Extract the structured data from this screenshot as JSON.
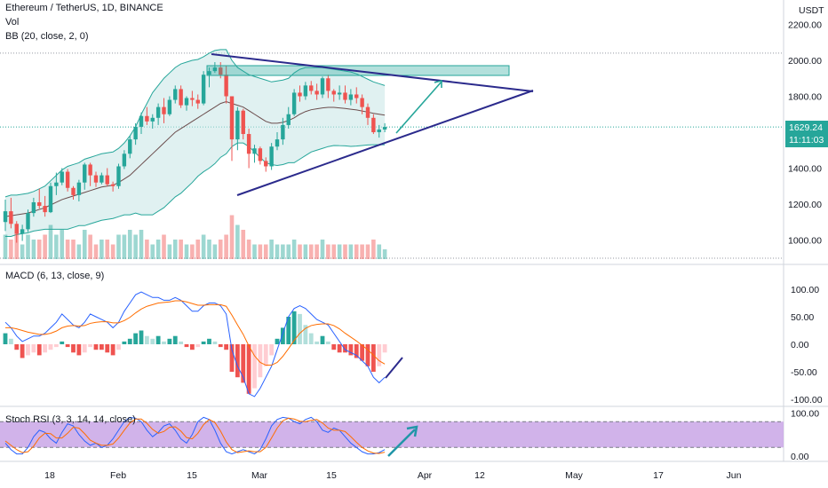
{
  "header": {
    "symbol_line": "Ethereum / TetherUS, 1D, BINANCE",
    "vol_label": "Vol",
    "bb_label": "BB (20, close, 2, 0)",
    "macd_label": "MACD (6, 13, close, 9)",
    "rsi_label": "Stoch RSI (3, 3, 14, 14, close)"
  },
  "price_axis": {
    "currency": "USDT",
    "ticks": [
      "2200.00",
      "2000.00",
      "1800.00",
      "1600.00",
      "1400.00",
      "1200.00",
      "1000.00"
    ]
  },
  "macd_axis": {
    "ticks": [
      "100.00",
      "50.00",
      "0.00",
      "-50.00",
      "-100.00"
    ]
  },
  "rsi_axis": {
    "ticks": [
      "100.00",
      "0.00"
    ]
  },
  "last_price": {
    "price": "1629.24",
    "countdown": "11:11:03"
  },
  "time_axis": {
    "labels": [
      "18",
      "Feb",
      "15",
      "Mar",
      "15",
      "Apr",
      "12",
      "May",
      "17",
      "Jun"
    ]
  },
  "colors": {
    "up": "#26a69a",
    "down": "#ef5350",
    "trendline": "#2b2a8c",
    "bb_fill": "#c6e6e6",
    "bb_band": "#26a69a",
    "bb_basis": "#6b4d4d",
    "macd_line": "#2962ff",
    "signal_line": "#ff6d00",
    "rsi_band": "#c9a6e6",
    "arrow": "#26a69a"
  },
  "chart_data": [
    {
      "type": "candlestick",
      "title": "Ethereum / TetherUS, 1D, BINANCE",
      "ylabel": "USDT",
      "ylim": [
        900,
        2250
      ],
      "date_range": [
        "2021-01-07",
        "2021-03-24"
      ],
      "ohlc": [
        [
          1100,
          1225,
          1050,
          1160
        ],
        [
          1160,
          1235,
          1065,
          1090
        ],
        [
          1090,
          1105,
          985,
          1035
        ],
        [
          1035,
          1085,
          995,
          1060
        ],
        [
          1060,
          1170,
          1045,
          1150
        ],
        [
          1150,
          1235,
          1130,
          1210
        ],
        [
          1210,
          1285,
          1175,
          1190
        ],
        [
          1190,
          1245,
          1130,
          1155
        ],
        [
          1155,
          1320,
          1150,
          1300
        ],
        [
          1300,
          1375,
          1250,
          1320
        ],
        [
          1320,
          1400,
          1305,
          1380
        ],
        [
          1380,
          1395,
          1270,
          1290
        ],
        [
          1290,
          1300,
          1225,
          1250
        ],
        [
          1250,
          1335,
          1215,
          1320
        ],
        [
          1320,
          1430,
          1280,
          1420
        ],
        [
          1420,
          1430,
          1300,
          1360
        ],
        [
          1360,
          1380,
          1295,
          1320
        ],
        [
          1320,
          1375,
          1310,
          1360
        ],
        [
          1360,
          1400,
          1300,
          1310
        ],
        [
          1310,
          1325,
          1270,
          1300
        ],
        [
          1300,
          1425,
          1285,
          1410
        ],
        [
          1410,
          1500,
          1395,
          1480
        ],
        [
          1480,
          1580,
          1455,
          1560
        ],
        [
          1560,
          1650,
          1530,
          1630
        ],
        [
          1630,
          1710,
          1590,
          1690
        ],
        [
          1690,
          1740,
          1640,
          1660
        ],
        [
          1660,
          1700,
          1620,
          1680
        ],
        [
          1680,
          1760,
          1640,
          1740
        ],
        [
          1740,
          1790,
          1650,
          1700
        ],
        [
          1700,
          1800,
          1690,
          1780
        ],
        [
          1780,
          1860,
          1760,
          1840
        ],
        [
          1840,
          1860,
          1735,
          1750
        ],
        [
          1750,
          1800,
          1720,
          1790
        ],
        [
          1790,
          1830,
          1745,
          1780
        ],
        [
          1780,
          1810,
          1730,
          1760
        ],
        [
          1760,
          1940,
          1750,
          1920
        ],
        [
          1920,
          1960,
          1850,
          1940
        ],
        [
          1940,
          1990,
          1930,
          1960
        ],
        [
          1960,
          1990,
          1900,
          1920
        ],
        [
          1920,
          1970,
          1760,
          1800
        ],
        [
          1800,
          1800,
          1440,
          1560
        ],
        [
          1560,
          1740,
          1500,
          1720
        ],
        [
          1720,
          1730,
          1560,
          1590
        ],
        [
          1590,
          1620,
          1400,
          1480
        ],
        [
          1480,
          1530,
          1430,
          1510
        ],
        [
          1510,
          1520,
          1420,
          1440
        ],
        [
          1440,
          1460,
          1380,
          1410
        ],
        [
          1410,
          1540,
          1390,
          1520
        ],
        [
          1520,
          1600,
          1500,
          1560
        ],
        [
          1560,
          1680,
          1530,
          1640
        ],
        [
          1640,
          1740,
          1620,
          1700
        ],
        [
          1700,
          1840,
          1690,
          1820
        ],
        [
          1820,
          1860,
          1770,
          1800
        ],
        [
          1800,
          1880,
          1780,
          1860
        ],
        [
          1860,
          1885,
          1810,
          1830
        ],
        [
          1830,
          1870,
          1780,
          1810
        ],
        [
          1810,
          1910,
          1790,
          1900
        ],
        [
          1900,
          1920,
          1790,
          1830
        ],
        [
          1830,
          1840,
          1770,
          1810
        ],
        [
          1810,
          1860,
          1780,
          1820
        ],
        [
          1820,
          1860,
          1760,
          1780
        ],
        [
          1780,
          1840,
          1750,
          1810
        ],
        [
          1810,
          1850,
          1760,
          1790
        ],
        [
          1790,
          1810,
          1700,
          1740
        ],
        [
          1740,
          1760,
          1640,
          1680
        ],
        [
          1680,
          1700,
          1590,
          1600
        ],
        [
          1600,
          1640,
          1570,
          1615
        ],
        [
          1615,
          1650,
          1600,
          1629.24
        ]
      ],
      "bollinger": {
        "upper": [
          1240,
          1250,
          1250,
          1255,
          1260,
          1270,
          1285,
          1300,
          1330,
          1360,
          1390,
          1410,
          1420,
          1430,
          1450,
          1460,
          1470,
          1480,
          1485,
          1490,
          1510,
          1540,
          1580,
          1630,
          1700,
          1760,
          1820,
          1860,
          1900,
          1930,
          1960,
          1980,
          1990,
          2000,
          2005,
          2020,
          2040,
          2055,
          2060,
          2060,
          2000,
          1960,
          1940,
          1920,
          1910,
          1900,
          1890,
          1880,
          1885,
          1890,
          1900,
          1930,
          1950,
          1960,
          1960,
          1960,
          1960,
          1955,
          1950,
          1945,
          1940,
          1935,
          1925,
          1910,
          1895,
          1880,
          1870,
          1860
        ],
        "basis": [
          1130,
          1135,
          1140,
          1145,
          1150,
          1160,
          1170,
          1180,
          1195,
          1210,
          1225,
          1235,
          1245,
          1255,
          1265,
          1275,
          1285,
          1295,
          1300,
          1305,
          1320,
          1340,
          1360,
          1390,
          1420,
          1450,
          1480,
          1510,
          1540,
          1570,
          1600,
          1620,
          1640,
          1660,
          1680,
          1700,
          1720,
          1740,
          1760,
          1770,
          1760,
          1750,
          1740,
          1720,
          1700,
          1680,
          1660,
          1650,
          1650,
          1655,
          1665,
          1680,
          1700,
          1715,
          1725,
          1730,
          1735,
          1738,
          1738,
          1735,
          1732,
          1728,
          1724,
          1718,
          1712,
          1705,
          1700,
          1695
        ],
        "lower": [
          1020,
          1020,
          1030,
          1035,
          1040,
          1050,
          1055,
          1060,
          1060,
          1060,
          1060,
          1060,
          1070,
          1080,
          1080,
          1090,
          1100,
          1110,
          1115,
          1120,
          1130,
          1140,
          1140,
          1150,
          1140,
          1140,
          1140,
          1160,
          1180,
          1210,
          1240,
          1260,
          1290,
          1320,
          1355,
          1380,
          1400,
          1425,
          1460,
          1480,
          1520,
          1540,
          1540,
          1520,
          1490,
          1460,
          1430,
          1420,
          1415,
          1420,
          1430,
          1430,
          1450,
          1470,
          1490,
          1500,
          1510,
          1520,
          1526,
          1525,
          1524,
          1521,
          1523,
          1526,
          1529,
          1530,
          1530,
          1530
        ]
      }
    },
    {
      "type": "bar",
      "title": "Vol",
      "values": [
        5,
        4,
        6,
        3,
        5,
        4,
        4,
        5,
        7,
        5,
        6,
        4,
        4,
        3,
        6,
        5,
        3,
        4,
        4,
        3,
        5,
        5,
        6,
        5,
        6,
        4,
        3,
        4,
        5,
        3,
        4,
        4,
        3,
        3,
        4,
        5,
        4,
        3,
        4,
        5,
        9,
        7,
        6,
        4,
        3,
        3,
        3,
        4,
        3,
        3,
        3,
        4,
        3,
        3,
        3,
        3,
        4,
        3,
        3,
        3,
        3,
        3,
        3,
        3,
        3,
        4,
        3,
        2
      ]
    },
    {
      "type": "line",
      "title": "MACD (6, 13, close, 9)",
      "ylim": [
        -110,
        115
      ],
      "histogram": [
        20,
        10,
        -10,
        -25,
        -20,
        -15,
        -20,
        -15,
        -10,
        -5,
        5,
        -5,
        -15,
        -20,
        -15,
        -5,
        -10,
        -10,
        -15,
        -20,
        -10,
        5,
        10,
        20,
        25,
        15,
        10,
        15,
        5,
        10,
        15,
        5,
        -5,
        -10,
        -5,
        5,
        10,
        5,
        -5,
        -10,
        -50,
        -60,
        -70,
        -90,
        -80,
        -60,
        -40,
        -20,
        10,
        30,
        50,
        60,
        55,
        35,
        20,
        5,
        15,
        5,
        -10,
        -15,
        -15,
        -20,
        -25,
        -30,
        -40,
        -50,
        -40,
        -15
      ],
      "macd": [
        40,
        30,
        15,
        5,
        10,
        15,
        15,
        20,
        30,
        40,
        55,
        45,
        35,
        30,
        40,
        55,
        50,
        45,
        40,
        30,
        40,
        60,
        75,
        90,
        95,
        90,
        85,
        85,
        80,
        80,
        85,
        80,
        70,
        60,
        60,
        70,
        75,
        75,
        70,
        55,
        -10,
        -40,
        -60,
        -90,
        -95,
        -80,
        -60,
        -40,
        -10,
        20,
        50,
        65,
        70,
        65,
        55,
        45,
        40,
        35,
        20,
        5,
        -10,
        -15,
        -20,
        -30,
        -40,
        -60,
        -70,
        -60
      ],
      "signal": [
        30,
        30,
        28,
        25,
        22,
        20,
        18,
        18,
        20,
        24,
        30,
        33,
        34,
        33,
        34,
        38,
        40,
        41,
        41,
        39,
        39,
        43,
        49,
        57,
        64,
        69,
        72,
        75,
        76,
        77,
        79,
        79,
        77,
        74,
        71,
        71,
        72,
        72,
        72,
        69,
        53,
        35,
        18,
        -3,
        -21,
        -33,
        -38,
        -38,
        -33,
        -22,
        -8,
        7,
        20,
        29,
        34,
        36,
        37,
        37,
        34,
        28,
        20,
        13,
        6,
        -2,
        -10,
        -20,
        -30,
        -36
      ]
    },
    {
      "type": "line",
      "title": "Stoch RSI (3, 3, 14, 14, close)",
      "ylim": [
        0,
        100
      ],
      "band": [
        20,
        80
      ],
      "k": [
        30,
        15,
        5,
        5,
        20,
        45,
        60,
        55,
        40,
        30,
        55,
        75,
        70,
        50,
        35,
        25,
        30,
        20,
        25,
        40,
        60,
        80,
        90,
        88,
        80,
        60,
        45,
        55,
        70,
        75,
        60,
        40,
        30,
        50,
        80,
        90,
        85,
        60,
        30,
        10,
        5,
        10,
        15,
        10,
        5,
        15,
        40,
        70,
        85,
        90,
        88,
        80,
        75,
        85,
        90,
        80,
        60,
        55,
        65,
        60,
        45,
        30,
        20,
        10,
        5,
        5,
        8,
        15
      ],
      "d": [
        35,
        25,
        15,
        8,
        10,
        23,
        42,
        53,
        52,
        42,
        42,
        53,
        67,
        65,
        52,
        37,
        30,
        25,
        25,
        28,
        42,
        60,
        77,
        86,
        86,
        76,
        62,
        53,
        57,
        67,
        68,
        58,
        43,
        40,
        53,
        73,
        85,
        78,
        58,
        33,
        15,
        8,
        10,
        12,
        10,
        10,
        20,
        42,
        65,
        82,
        88,
        86,
        81,
        80,
        83,
        85,
        77,
        65,
        60,
        60,
        57,
        45,
        32,
        20,
        12,
        7,
        6,
        9
      ]
    }
  ]
}
